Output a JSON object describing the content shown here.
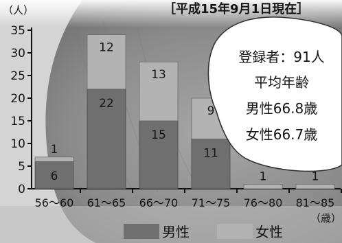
{
  "chart_data": {
    "type": "bar",
    "stacked": true,
    "title": "［平成15年9月1日現在］",
    "ylabel": "（人）",
    "x_unit": "（歳）",
    "ylim": [
      0,
      35
    ],
    "yticks": [
      "0",
      "5",
      "10",
      "15",
      "20",
      "25",
      "30",
      "35"
    ],
    "categories": [
      "56～60",
      "61～65",
      "66～70",
      "71～75",
      "76～80",
      "81～85"
    ],
    "series": [
      {
        "name": "男性",
        "values": [
          6,
          22,
          15,
          11,
          0,
          0
        ],
        "labels": [
          "6",
          "22",
          "15",
          "11",
          "",
          ""
        ],
        "color": "#6f6f6f"
      },
      {
        "name": "女性",
        "values": [
          1,
          12,
          13,
          9,
          1,
          1
        ],
        "labels": [
          "1",
          "12",
          "13",
          "9",
          "1",
          "1"
        ],
        "color": "#b3b3b3"
      }
    ],
    "grid": false,
    "legend_position": "bottom"
  },
  "info_box": {
    "line1": "登録者：91人",
    "line2": "平均年齢",
    "line3": "男性66.8歳",
    "line4": "女性66.7歳"
  }
}
